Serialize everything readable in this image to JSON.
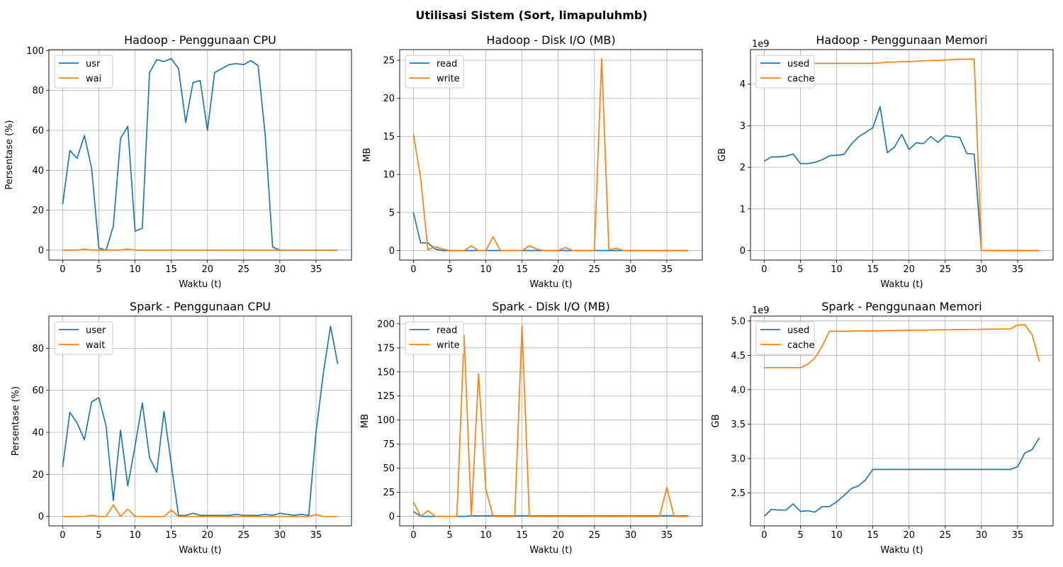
{
  "figure": {
    "title": "Utilisasi Sistem (Sort, limapuluhmb)"
  },
  "colors": {
    "series1": "#1f77b4",
    "series2": "#ff7f0e",
    "grid": "#b0b0b0",
    "axis": "#000000"
  },
  "chart_data": [
    {
      "type": "line",
      "title": "Hadoop - Penggunaan CPU",
      "xlabel": "Waktu (t)",
      "ylabel": "Persentase (%)",
      "xlim": [
        -1.9,
        39.9
      ],
      "ylim": [
        -5,
        100.5
      ],
      "xticks": [
        0,
        5,
        10,
        15,
        20,
        25,
        30,
        35
      ],
      "xtick_labels": [
        "0",
        "5",
        "10",
        "15",
        "20",
        "25",
        "30",
        "35"
      ],
      "yticks": [
        0,
        20,
        40,
        60,
        80,
        100
      ],
      "ytick_labels": [
        "0",
        "20",
        "40",
        "60",
        "80",
        "100"
      ],
      "scale_label": "",
      "grid": true,
      "legend": "upper left",
      "x": [
        0,
        1,
        2,
        3,
        4,
        5,
        6,
        7,
        8,
        9,
        10,
        11,
        12,
        13,
        14,
        15,
        16,
        17,
        18,
        19,
        20,
        21,
        22,
        23,
        24,
        25,
        26,
        27,
        28,
        29,
        30,
        31,
        32,
        33,
        34,
        35,
        36,
        37,
        38
      ],
      "series": [
        {
          "name": "usr",
          "color": "#1f77b4",
          "values": [
            23,
            50,
            46,
            57.5,
            41,
            1,
            0,
            12,
            56,
            62,
            9.5,
            11,
            89,
            95.5,
            94.5,
            96,
            91,
            64,
            84,
            85,
            60,
            89,
            91,
            93,
            93.5,
            93,
            95,
            92.5,
            57,
            1.5,
            0,
            0,
            0,
            0,
            0,
            0,
            0,
            0,
            0
          ]
        },
        {
          "name": "wai",
          "color": "#ff7f0e",
          "values": [
            0,
            0,
            0,
            0.5,
            0,
            0,
            0,
            0,
            0,
            0.5,
            0,
            0,
            0,
            0,
            0,
            0,
            0,
            0,
            0,
            0,
            0,
            0,
            0,
            0,
            0,
            0,
            0,
            0,
            0,
            0,
            0,
            0,
            0,
            0,
            0,
            0,
            0,
            0,
            0
          ]
        }
      ]
    },
    {
      "type": "line",
      "title": "Hadoop - Disk I/O (MB)",
      "xlabel": "Waktu (t)",
      "ylabel": "MB",
      "xlim": [
        -1.9,
        39.9
      ],
      "ylim": [
        -1.26,
        26.4
      ],
      "xticks": [
        0,
        5,
        10,
        15,
        20,
        25,
        30,
        35
      ],
      "xtick_labels": [
        "0",
        "5",
        "10",
        "15",
        "20",
        "25",
        "30",
        "35"
      ],
      "yticks": [
        0,
        5,
        10,
        15,
        20,
        25
      ],
      "ytick_labels": [
        "0",
        "5",
        "10",
        "15",
        "20",
        "25"
      ],
      "scale_label": "",
      "grid": true,
      "legend": "upper left",
      "x": [
        0,
        1,
        2,
        3,
        4,
        5,
        6,
        7,
        8,
        9,
        10,
        11,
        12,
        13,
        14,
        15,
        16,
        17,
        18,
        19,
        20,
        21,
        22,
        23,
        24,
        25,
        26,
        27,
        28,
        29,
        30,
        31,
        32,
        33,
        34,
        35,
        36,
        37,
        38
      ],
      "series": [
        {
          "name": "read",
          "color": "#1f77b4",
          "values": [
            5,
            1,
            1,
            0.2,
            0,
            0,
            0,
            0,
            0,
            0,
            0,
            0,
            0,
            0,
            0,
            0,
            0,
            0,
            0,
            0,
            0,
            0,
            0,
            0,
            0,
            0,
            0,
            0,
            0,
            0,
            0,
            0,
            0,
            0,
            0,
            0,
            0,
            0,
            0
          ]
        },
        {
          "name": "write",
          "color": "#ff7f0e",
          "values": [
            15.3,
            9.5,
            0.1,
            0.5,
            0.2,
            0,
            0,
            0,
            0.6,
            0,
            0,
            1.8,
            0,
            0,
            0,
            0,
            0.6,
            0.2,
            0,
            0,
            0,
            0.4,
            0,
            0,
            0,
            0,
            25.2,
            0.1,
            0.3,
            0,
            0,
            0,
            0,
            0,
            0,
            0,
            0,
            0,
            0
          ]
        }
      ]
    },
    {
      "type": "line",
      "title": "Hadoop - Penggunaan Memori",
      "xlabel": "Waktu (t)",
      "ylabel": "GB",
      "xlim": [
        -1.9,
        39.9
      ],
      "ylim": [
        -0.23,
        4.83
      ],
      "xticks": [
        0,
        5,
        10,
        15,
        20,
        25,
        30,
        35
      ],
      "xtick_labels": [
        "0",
        "5",
        "10",
        "15",
        "20",
        "25",
        "30",
        "35"
      ],
      "yticks": [
        0,
        1,
        2,
        3,
        4
      ],
      "ytick_labels": [
        "0",
        "1",
        "2",
        "3",
        "4"
      ],
      "scale_label": "1e9",
      "grid": true,
      "legend": "upper left",
      "x": [
        0,
        1,
        2,
        3,
        4,
        5,
        6,
        7,
        8,
        9,
        10,
        11,
        12,
        13,
        14,
        15,
        16,
        17,
        18,
        19,
        20,
        21,
        22,
        23,
        24,
        25,
        26,
        27,
        28,
        29,
        30,
        31,
        32,
        33,
        34,
        35,
        36,
        37,
        38
      ],
      "series": [
        {
          "name": "used",
          "color": "#1f77b4",
          "values": [
            2.15,
            2.25,
            2.25,
            2.27,
            2.32,
            2.09,
            2.09,
            2.12,
            2.18,
            2.28,
            2.29,
            2.31,
            2.55,
            2.73,
            2.84,
            2.95,
            3.46,
            2.35,
            2.49,
            2.79,
            2.43,
            2.59,
            2.57,
            2.74,
            2.6,
            2.76,
            2.74,
            2.72,
            2.33,
            2.32,
            0,
            0,
            0,
            0,
            0,
            0,
            0,
            0,
            0
          ]
        },
        {
          "name": "cache",
          "color": "#ff7f0e",
          "values": [
            4.5,
            4.5,
            4.5,
            4.5,
            4.5,
            4.5,
            4.5,
            4.5,
            4.5,
            4.5,
            4.5,
            4.5,
            4.5,
            4.5,
            4.5,
            4.5,
            4.51,
            4.53,
            4.53,
            4.54,
            4.54,
            4.55,
            4.56,
            4.57,
            4.57,
            4.58,
            4.59,
            4.6,
            4.6,
            4.6,
            0,
            0,
            0,
            0,
            0,
            0,
            0,
            0,
            0
          ]
        }
      ]
    },
    {
      "type": "line",
      "title": "Spark - Penggunaan CPU",
      "xlabel": "Waktu (t)",
      "ylabel": "Persentase (%)",
      "xlim": [
        -1.9,
        39.9
      ],
      "ylim": [
        -4.5,
        95.3
      ],
      "xticks": [
        0,
        5,
        10,
        15,
        20,
        25,
        30,
        35
      ],
      "xtick_labels": [
        "0",
        "5",
        "10",
        "15",
        "20",
        "25",
        "30",
        "35"
      ],
      "yticks": [
        0,
        20,
        40,
        60,
        80
      ],
      "ytick_labels": [
        "0",
        "20",
        "40",
        "60",
        "80"
      ],
      "scale_label": "",
      "grid": true,
      "legend": "upper left",
      "x": [
        0,
        1,
        2,
        3,
        4,
        5,
        6,
        7,
        8,
        9,
        10,
        11,
        12,
        13,
        14,
        15,
        16,
        17,
        18,
        19,
        20,
        21,
        22,
        23,
        24,
        25,
        26,
        27,
        28,
        29,
        30,
        31,
        32,
        33,
        34,
        35,
        36,
        37,
        38
      ],
      "series": [
        {
          "name": "user",
          "color": "#1f77b4",
          "values": [
            23.5,
            49.5,
            44.5,
            36.5,
            54.5,
            56.5,
            43,
            7.5,
            41,
            14.5,
            33.5,
            54,
            28,
            21,
            50,
            25,
            0.5,
            0.5,
            1.5,
            0.5,
            0.5,
            0.5,
            0.5,
            0.5,
            1,
            0.5,
            0.5,
            0.5,
            1,
            0.5,
            1.5,
            1,
            0.5,
            1,
            0.5,
            40,
            68,
            90.5,
            72.5
          ]
        },
        {
          "name": "wait",
          "color": "#ff7f0e",
          "values": [
            0,
            0,
            0,
            0,
            0.5,
            0,
            0,
            5.5,
            0,
            3.5,
            0,
            0,
            0,
            0,
            0,
            3,
            0,
            0,
            0,
            0,
            0,
            0,
            0,
            0,
            0,
            0,
            0,
            0,
            0,
            0,
            0,
            0,
            0,
            0,
            0,
            1,
            0,
            0,
            0
          ]
        }
      ]
    },
    {
      "type": "line",
      "title": "Spark - Disk I/O (MB)",
      "xlabel": "Waktu (t)",
      "ylabel": "MB",
      "xlim": [
        -1.9,
        39.9
      ],
      "ylim": [
        -9.9,
        208.0
      ],
      "xticks": [
        0,
        5,
        10,
        15,
        20,
        25,
        30,
        35
      ],
      "xtick_labels": [
        "0",
        "5",
        "10",
        "15",
        "20",
        "25",
        "30",
        "35"
      ],
      "yticks": [
        0,
        25,
        50,
        75,
        100,
        125,
        150,
        175,
        200
      ],
      "ytick_labels": [
        "0",
        "25",
        "50",
        "75",
        "100",
        "125",
        "150",
        "175",
        "200"
      ],
      "scale_label": "",
      "grid": true,
      "legend": "upper left",
      "x": [
        0,
        1,
        2,
        3,
        4,
        5,
        6,
        7,
        8,
        9,
        10,
        11,
        12,
        13,
        14,
        15,
        16,
        17,
        18,
        19,
        20,
        21,
        22,
        23,
        24,
        25,
        26,
        27,
        28,
        29,
        30,
        31,
        32,
        33,
        34,
        35,
        36,
        37,
        38
      ],
      "series": [
        {
          "name": "read",
          "color": "#1f77b4",
          "values": [
            5,
            0,
            0,
            0,
            0,
            0,
            0,
            0,
            0.5,
            0.5,
            0.5,
            0.5,
            0.5,
            0.5,
            0.5,
            0.5,
            0.5,
            0.5,
            0.5,
            0.5,
            0.5,
            0.5,
            0.5,
            0.5,
            0.5,
            0.5,
            0.5,
            0.5,
            0.5,
            0.5,
            0.5,
            0.5,
            0.5,
            0.5,
            0.5,
            0.5,
            0.5,
            0.5,
            0.5
          ]
        },
        {
          "name": "write",
          "color": "#ff7f0e",
          "values": [
            15,
            0,
            6,
            0,
            0,
            0,
            0,
            188,
            0,
            148,
            28,
            0,
            0,
            0,
            0,
            198,
            0,
            0,
            0,
            0,
            0,
            0,
            0,
            0,
            0,
            0,
            0,
            0,
            0,
            0,
            0,
            0,
            0,
            0,
            0,
            30,
            0,
            0,
            0
          ]
        }
      ]
    },
    {
      "type": "line",
      "title": "Spark - Penggunaan Memori",
      "xlabel": "Waktu (t)",
      "ylabel": "GB",
      "xlim": [
        -1.9,
        39.9
      ],
      "ylim": [
        2.02,
        5.07
      ],
      "xticks": [
        0,
        5,
        10,
        15,
        20,
        25,
        30,
        35
      ],
      "xtick_labels": [
        "0",
        "5",
        "10",
        "15",
        "20",
        "25",
        "30",
        "35"
      ],
      "yticks": [
        2.5,
        3.0,
        3.5,
        4.0,
        4.5,
        5.0
      ],
      "ytick_labels": [
        "2.5",
        "3.0",
        "3.5",
        "4.0",
        "4.5",
        "5.0"
      ],
      "scale_label": "1e9",
      "grid": true,
      "legend": "upper left",
      "x": [
        0,
        1,
        2,
        3,
        4,
        5,
        6,
        7,
        8,
        9,
        10,
        11,
        12,
        13,
        14,
        15,
        16,
        17,
        18,
        19,
        20,
        21,
        22,
        23,
        24,
        25,
        26,
        27,
        28,
        29,
        30,
        31,
        32,
        33,
        34,
        35,
        36,
        37,
        38
      ],
      "series": [
        {
          "name": "used",
          "color": "#1f77b4",
          "values": [
            2.16,
            2.26,
            2.25,
            2.25,
            2.34,
            2.23,
            2.24,
            2.22,
            2.3,
            2.3,
            2.37,
            2.46,
            2.56,
            2.6,
            2.69,
            2.84,
            2.84,
            2.84,
            2.84,
            2.84,
            2.84,
            2.84,
            2.84,
            2.84,
            2.84,
            2.84,
            2.84,
            2.84,
            2.84,
            2.84,
            2.84,
            2.84,
            2.84,
            2.84,
            2.84,
            2.88,
            3.08,
            3.13,
            3.3
          ]
        },
        {
          "name": "cache",
          "color": "#ff7f0e",
          "values": [
            4.32,
            4.32,
            4.32,
            4.32,
            4.32,
            4.32,
            4.37,
            4.46,
            4.63,
            4.85,
            4.85,
            4.85,
            4.85,
            4.855,
            4.855,
            4.855,
            4.857,
            4.859,
            4.86,
            4.862,
            4.864,
            4.865,
            4.866,
            4.868,
            4.87,
            4.871,
            4.873,
            4.874,
            4.875,
            4.876,
            4.878,
            4.88,
            4.881,
            4.882,
            4.884,
            4.94,
            4.945,
            4.8,
            4.41
          ]
        }
      ]
    }
  ]
}
